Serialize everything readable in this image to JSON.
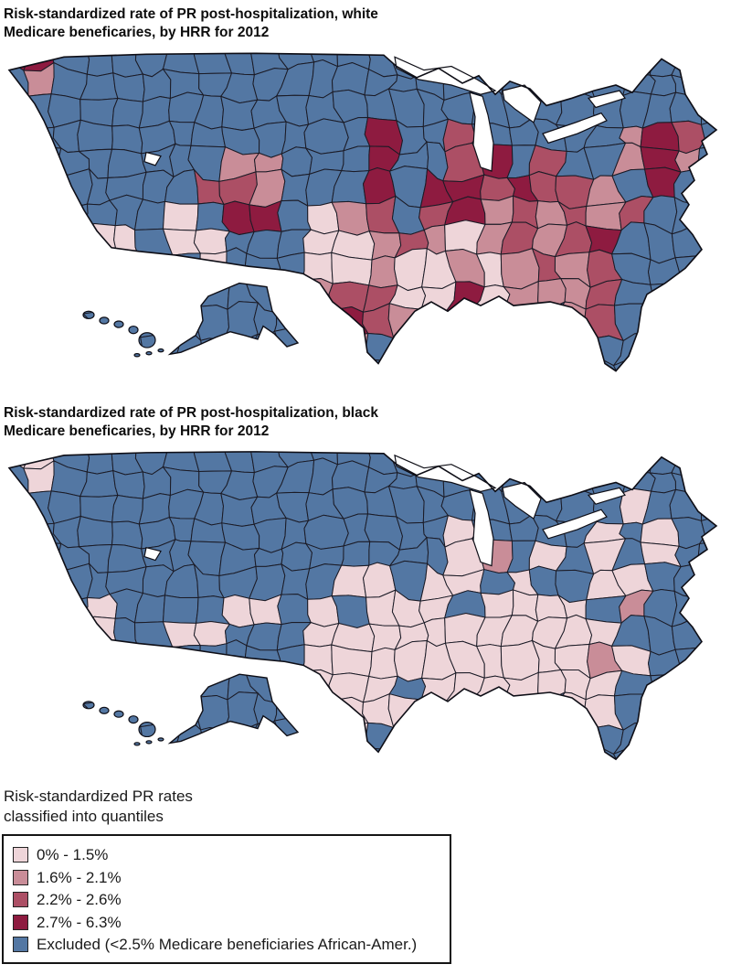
{
  "figure": {
    "map_type": "choropleth",
    "region_unit": "HRR",
    "year": "2012",
    "maps": [
      {
        "id": "white",
        "title_line1": "Risk-standardized rate of PR post-hospitalization, white",
        "title_line2": "Medicare beneficaries, by HRR for 2012",
        "grid": [
          "33444444444444444444444444",
          "41444444444444444444444444",
          "44444444444444444444444444",
          "44444444444443442444441324",
          "44444444114443442342441314",
          "44444442214443433232214344",
          "44444404334012423121212444",
          "12400400444001210121234444",
          "43444440444001001012124444",
          "44444444444122003011124444",
          "44444444444432102444124444",
          "44444444444414444444244444",
          "44444444444444444444444444"
        ]
      },
      {
        "id": "black",
        "title_line1": "Risk-standardized rate of PR post-hospitalization, black",
        "title_line2": "Medicare beneficaries, by HRR for 2012",
        "grid": [
          "00444444444444444444444444",
          "40444444444444444444444444",
          "44444444444444444444440444",
          "44444444444444440444404044",
          "44444444444444440140404044",
          "44444444444400400404400444",
          "44404444004040004000041444",
          "40404400444000000000004444",
          "44444444444000000000010444",
          "44444444444000400000004444",
          "44444444444400000444004444",
          "44444444444404444444044444",
          "44444444444444444444444444"
        ]
      }
    ],
    "legend": {
      "caption_line1": "Risk-standardized PR rates",
      "caption_line2": "classified into quantiles",
      "items": [
        {
          "class_id": "0",
          "label": "0% - 1.5%",
          "color": "#eed5d9"
        },
        {
          "class_id": "1",
          "label": "1.6% - 2.1%",
          "color": "#c98d98"
        },
        {
          "class_id": "2",
          "label": "2.2% - 2.6%",
          "color": "#ac4f65"
        },
        {
          "class_id": "3",
          "label": "2.7% - 6.3%",
          "color": "#8e1b40"
        },
        {
          "class_id": "4",
          "label": "Excluded (<2.5% Medicare beneficiaries African-Amer.)",
          "color": "#5377a3"
        }
      ]
    },
    "colors": {
      "region_border": "#1b1b26",
      "coast_outline": "#0e0e16",
      "water": "#ffffff"
    }
  }
}
